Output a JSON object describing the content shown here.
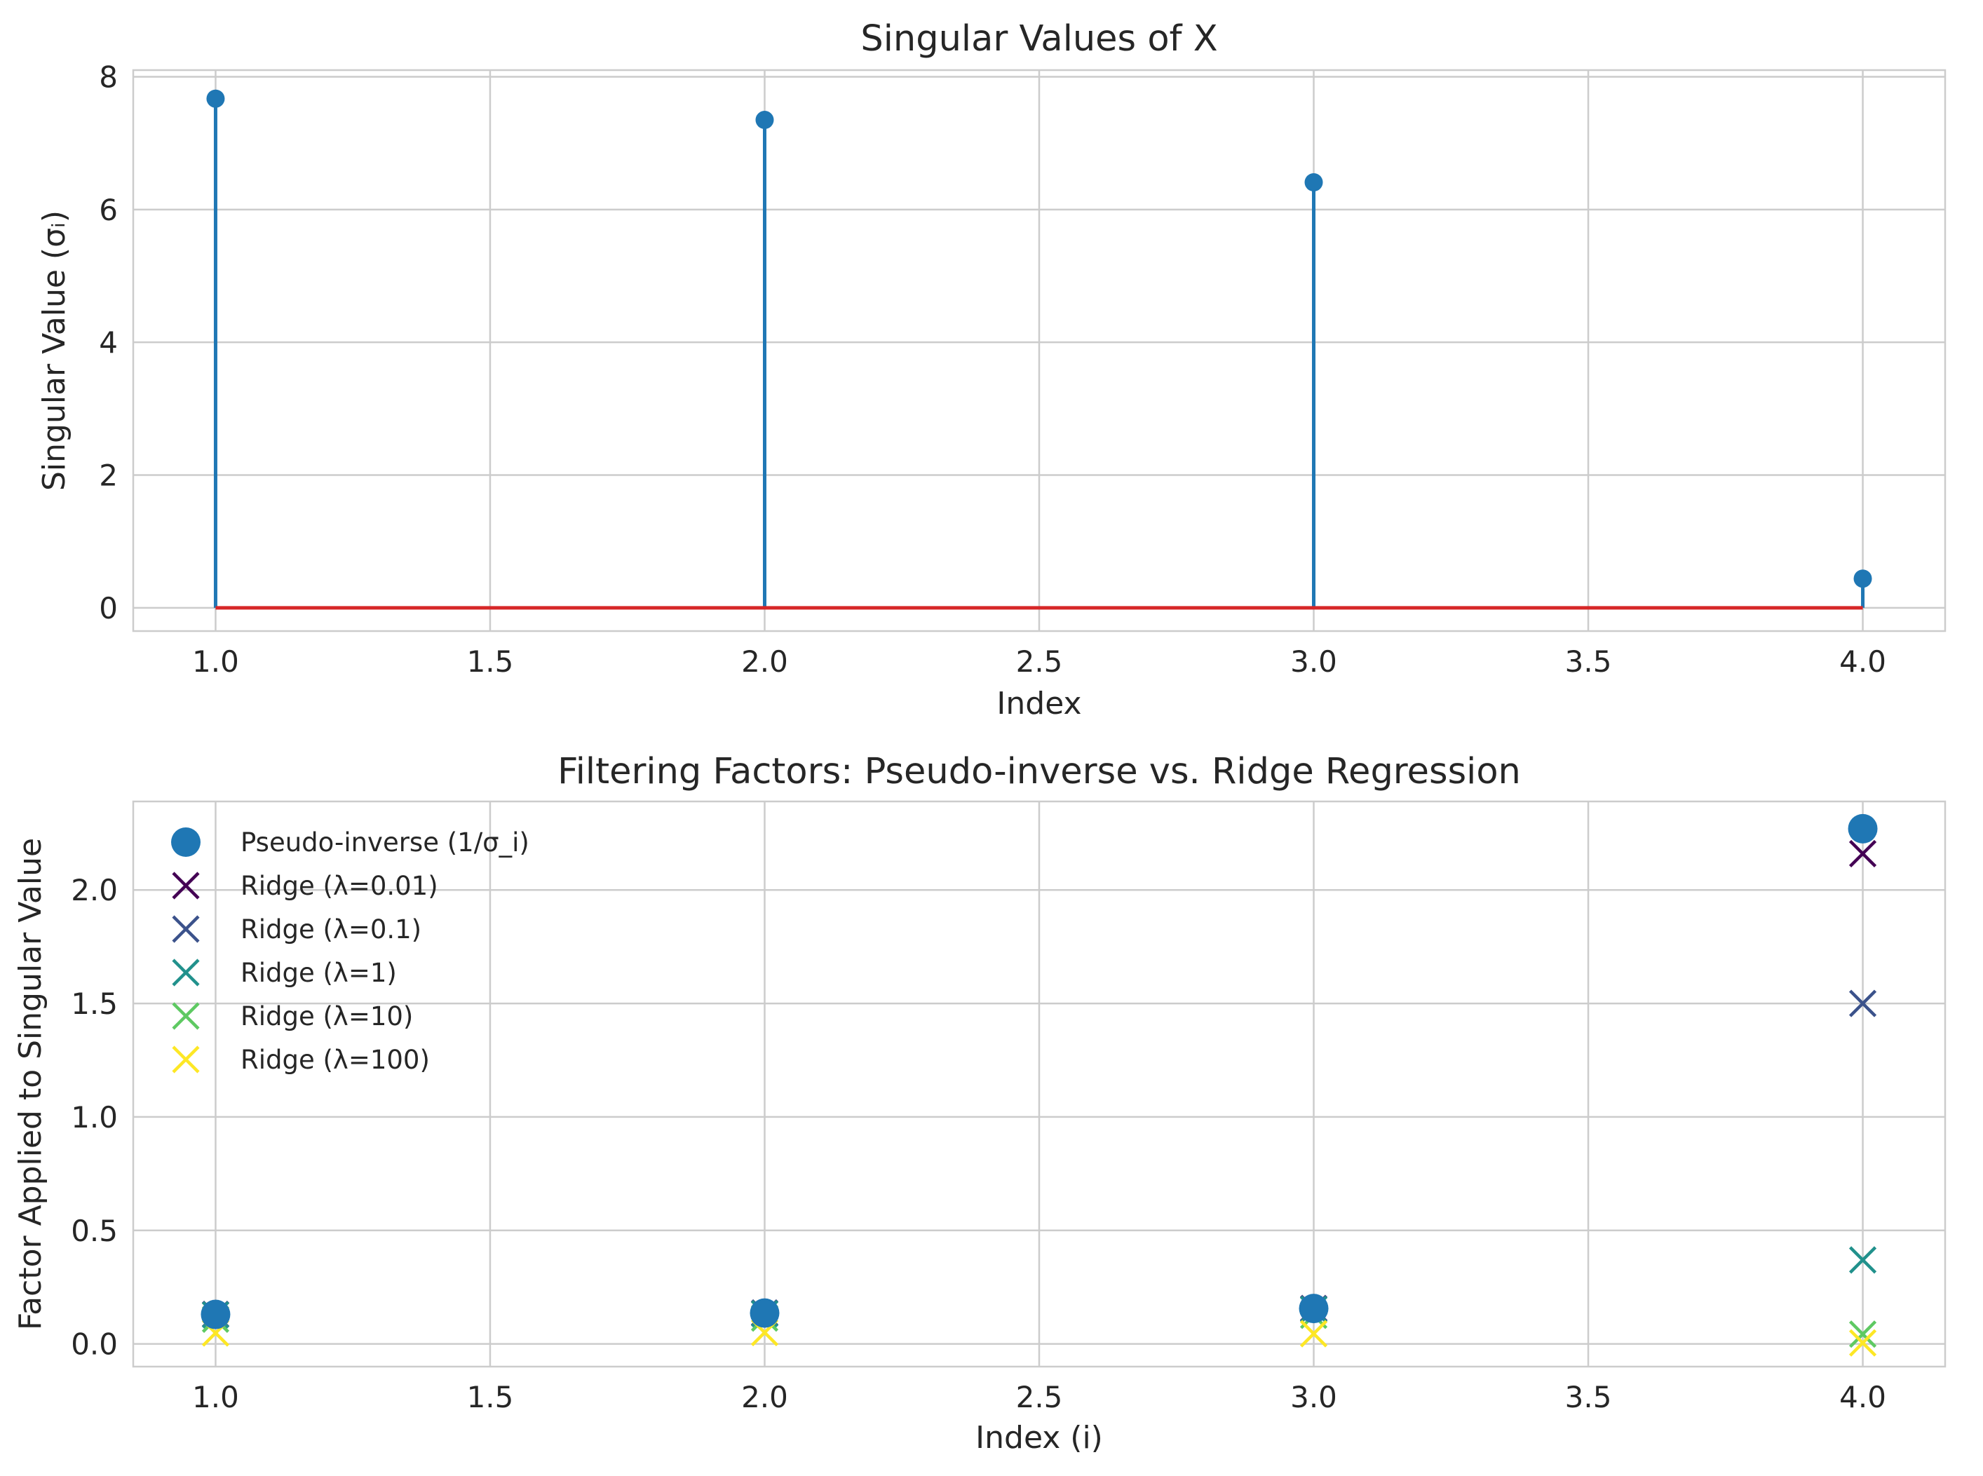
{
  "chart_data": [
    {
      "type": "stem",
      "title": "Singular Values of X",
      "xlabel": "Index",
      "ylabel": "Singular Value (σᵢ)",
      "xlim": [
        0.85,
        4.15
      ],
      "ylim": [
        -0.35,
        8.1
      ],
      "xticks": [
        1.0,
        1.5,
        2.0,
        2.5,
        3.0,
        3.5,
        4.0
      ],
      "xtick_labels": [
        "1.0",
        "1.5",
        "2.0",
        "2.5",
        "3.0",
        "3.5",
        "4.0"
      ],
      "yticks": [
        0,
        2,
        4,
        6,
        8
      ],
      "ytick_labels": [
        "0",
        "2",
        "4",
        "6",
        "8"
      ],
      "x": [
        1,
        2,
        3,
        4
      ],
      "values": [
        7.67,
        7.35,
        6.41,
        0.44
      ],
      "baseline": 0,
      "grid": true,
      "colors": {
        "stem": "#1f77b4",
        "baseline": "#d62728"
      }
    },
    {
      "type": "scatter",
      "title": "Filtering Factors: Pseudo-inverse vs. Ridge Regression",
      "xlabel": "Index (i)",
      "ylabel": "Factor Applied to Singular Value",
      "xlim": [
        0.85,
        4.15
      ],
      "ylim": [
        -0.1,
        2.39
      ],
      "xticks": [
        1.0,
        1.5,
        2.0,
        2.5,
        3.0,
        3.5,
        4.0
      ],
      "xtick_labels": [
        "1.0",
        "1.5",
        "2.0",
        "2.5",
        "3.0",
        "3.5",
        "4.0"
      ],
      "yticks": [
        0.0,
        0.5,
        1.0,
        1.5,
        2.0
      ],
      "ytick_labels": [
        "0.0",
        "0.5",
        "1.0",
        "1.5",
        "2.0"
      ],
      "grid": true,
      "legend_position": "top-left",
      "x": [
        1,
        2,
        3,
        4
      ],
      "series": [
        {
          "name": "Pseudo-inverse (1/σ_i)",
          "marker": "circle",
          "color": "#1f77b4",
          "values": [
            0.13,
            0.136,
            0.156,
            2.27
          ]
        },
        {
          "name": "Ridge (λ=0.01)",
          "marker": "x",
          "color": "#440154",
          "values": [
            0.13,
            0.136,
            0.156,
            2.16
          ]
        },
        {
          "name": "Ridge (λ=0.1)",
          "marker": "x",
          "color": "#3b528b",
          "values": [
            0.13,
            0.136,
            0.155,
            1.5
          ]
        },
        {
          "name": "Ridge (λ=1)",
          "marker": "x",
          "color": "#21918c",
          "values": [
            0.128,
            0.133,
            0.152,
            0.37
          ]
        },
        {
          "name": "Ridge (λ=10)",
          "marker": "x",
          "color": "#5ec962",
          "values": [
            0.109,
            0.114,
            0.126,
            0.043
          ]
        },
        {
          "name": "Ridge (λ=100)",
          "marker": "x",
          "color": "#fde725",
          "values": [
            0.048,
            0.05,
            0.045,
            0.0044
          ]
        }
      ]
    }
  ]
}
